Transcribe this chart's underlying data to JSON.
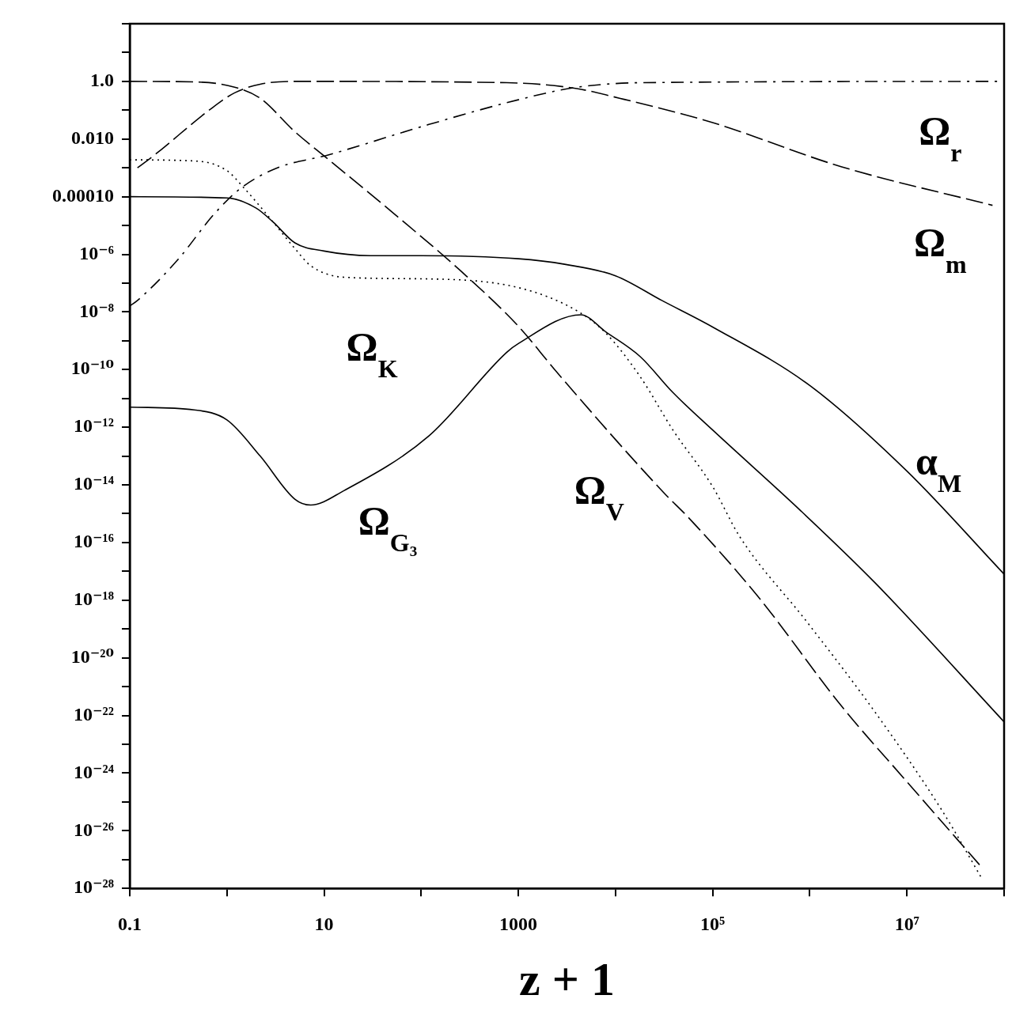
{
  "chart_data": {
    "type": "line",
    "xlabel": "z + 1",
    "log": "xy",
    "grid": false,
    "legend": false,
    "marker": "none",
    "xlim": [
      0.1,
      100000000.0
    ],
    "ylim": [
      1e-28,
      100
    ],
    "xticks": [
      {
        "value": 0.1,
        "label": "0.1"
      },
      {
        "value": 1,
        "label": null
      },
      {
        "value": 10,
        "label": "10"
      },
      {
        "value": 100,
        "label": null
      },
      {
        "value": 1000,
        "label": "1000"
      },
      {
        "value": 10000,
        "label": null
      },
      {
        "value": 100000,
        "label": "10⁵"
      },
      {
        "value": 1000000,
        "label": null
      },
      {
        "value": 10000000,
        "label": "10⁷"
      },
      {
        "value": 100000000,
        "label": null
      }
    ],
    "yticks": [
      {
        "value": 100,
        "label": null
      },
      {
        "value": 10,
        "label": null
      },
      {
        "value": 1,
        "label": "1.0"
      },
      {
        "value": 0.1,
        "label": null
      },
      {
        "value": 0.01,
        "label": "0.010"
      },
      {
        "value": 0.001,
        "label": null
      },
      {
        "value": 0.0001,
        "label": "0.00010"
      },
      {
        "value": 1e-05,
        "label": null
      },
      {
        "value": 1e-06,
        "label": "10⁻⁶"
      },
      {
        "value": 1e-07,
        "label": null
      },
      {
        "value": 1e-08,
        "label": "10⁻⁸"
      },
      {
        "value": 1e-09,
        "label": null
      },
      {
        "value": 1e-10,
        "label": "10⁻¹⁰"
      },
      {
        "value": 1e-11,
        "label": null
      },
      {
        "value": 1e-12,
        "label": "10⁻¹²"
      },
      {
        "value": 1e-13,
        "label": null
      },
      {
        "value": 1e-14,
        "label": "10⁻¹⁴"
      },
      {
        "value": 1e-15,
        "label": null
      },
      {
        "value": 1e-16,
        "label": "10⁻¹⁶"
      },
      {
        "value": 1e-17,
        "label": null
      },
      {
        "value": 1e-18,
        "label": "10⁻¹⁸"
      },
      {
        "value": 1e-19,
        "label": null
      },
      {
        "value": 1e-20,
        "label": "10⁻²⁰"
      },
      {
        "value": 1e-21,
        "label": null
      },
      {
        "value": 1e-22,
        "label": "10⁻²²"
      },
      {
        "value": 1e-23,
        "label": null
      },
      {
        "value": 1e-24,
        "label": "10⁻²⁴"
      },
      {
        "value": 1e-25,
        "label": null
      },
      {
        "value": 1e-26,
        "label": "10⁻²⁶"
      },
      {
        "value": 1e-27,
        "label": null
      },
      {
        "value": 1e-28,
        "label": "10⁻²⁸"
      }
    ],
    "series": [
      {
        "name": "α$_{M}$",
        "color": "#000000",
        "line_style": "solid",
        "x": [
          0.1,
          1,
          2,
          3,
          5,
          10,
          30,
          100,
          1000,
          3000,
          10000,
          30000,
          100000,
          1000000,
          10000000,
          100000000
        ],
        "values": [
          0.0001,
          9e-05,
          4e-05,
          1.3e-05,
          2.5e-06,
          1.3e-06,
          9e-07,
          9e-07,
          7e-07,
          4.5e-07,
          1.8e-07,
          2.5e-08,
          3e-09,
          2.8e-11,
          3e-14,
          8e-18
        ]
      },
      {
        "name": "Ω$_{K}$",
        "color": "#000000",
        "line_style": "dotted",
        "x": [
          0.1,
          0.5,
          1,
          1.5,
          2.85,
          5,
          7.3,
          16,
          120,
          1000,
          4000,
          8000,
          18000,
          39000,
          100000,
          190000,
          930000,
          4700000,
          23000000,
          60000000
        ],
        "values": [
          0.0019,
          0.0017,
          0.0008,
          0.0002,
          1.6e-05,
          1.6e-06,
          4e-07,
          1.6e-07,
          1.4e-07,
          7e-08,
          1.1e-08,
          1.8e-09,
          5.6e-11,
          8e-13,
          8.7e-15,
          1.6e-16,
          1.8e-19,
          1.3e-22,
          5e-26,
          2e-28
        ]
      },
      {
        "name": "Ω$_{V}$",
        "color": "#000000",
        "line_style": "dashed",
        "x": [
          0.1,
          0.5,
          1.2,
          2.2,
          5,
          11,
          53,
          260,
          1000,
          2500,
          32000,
          55000,
          290000,
          2100000,
          10000000,
          60000000
        ],
        "values": [
          1,
          0.95,
          0.63,
          0.26,
          0.018,
          0.002,
          2.5e-05,
          2.5e-07,
          3.2e-09,
          8e-11,
          5e-15,
          8e-16,
          1.4e-18,
          2.2e-22,
          5e-25,
          5e-28
        ]
      },
      {
        "name": "Ω$_{G₃}$",
        "color": "#000000",
        "line_style": "solid",
        "x": [
          0.1,
          0.46,
          1,
          2.2,
          5,
          7.3,
          16,
          120,
          760,
          1000,
          4400,
          8000,
          18000,
          39000,
          100000,
          800000,
          4700000,
          100000000
        ],
        "values": [
          5e-12,
          4e-12,
          1.8e-12,
          1e-13,
          3.2e-15,
          2e-15,
          6.3e-15,
          5e-13,
          4e-10,
          8e-10,
          8e-09,
          2e-09,
          2.8e-10,
          1.6e-11,
          8e-13,
          1.3e-15,
          4e-18,
          6e-23
        ]
      },
      {
        "name": "Ω$_{m}$",
        "color": "#000000",
        "line_style": "dashed",
        "x": [
          0.12,
          0.18,
          0.68,
          1.2,
          2.2,
          5,
          760,
          4000,
          11000,
          100000,
          2100000,
          76000000
        ],
        "values": [
          0.001,
          0.0028,
          0.11,
          0.4,
          0.8,
          1,
          0.9,
          0.56,
          0.26,
          0.037,
          0.0011,
          5e-05
        ]
      },
      {
        "name": "Ω$_{r}$",
        "color": "#000000",
        "line_style": "dashdot",
        "x": [
          0.1,
          0.12,
          0.31,
          0.74,
          1.4,
          3.3,
          11,
          120,
          1000,
          3700,
          18000,
          100000000
        ],
        "values": [
          1.6e-08,
          2.5e-08,
          6.3e-07,
          2.5e-05,
          0.0002,
          0.001,
          0.0028,
          0.032,
          0.23,
          0.6,
          0.9,
          1
        ]
      }
    ]
  }
}
